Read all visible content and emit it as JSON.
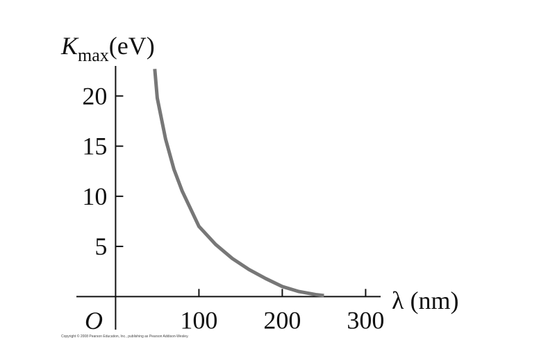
{
  "chart_data": {
    "type": "line",
    "ylabel": {
      "symbol": "K",
      "subscript": "max",
      "unit": "(eV)"
    },
    "xlabel": "λ (nm)",
    "origin_label": "O",
    "footnote": "Copyright © 2008 Pearson Education, Inc., publishing as Pearson Addison-Wesley.",
    "x": [
      47,
      50,
      60,
      70,
      80,
      100,
      120,
      140,
      160,
      180,
      200,
      220,
      240,
      250
    ],
    "series": [
      {
        "color": "#777777",
        "values": [
          22.7,
          19.8,
          15.7,
          12.7,
          10.5,
          7.0,
          5.2,
          3.8,
          2.7,
          1.8,
          1.0,
          0.5,
          0.2,
          0.1
        ]
      }
    ],
    "xlim": [
      -47,
      318
    ],
    "ylim": [
      -3.3,
      23
    ],
    "xticks": [
      100,
      200,
      300
    ],
    "yticks": [
      5,
      10,
      15,
      20
    ]
  }
}
